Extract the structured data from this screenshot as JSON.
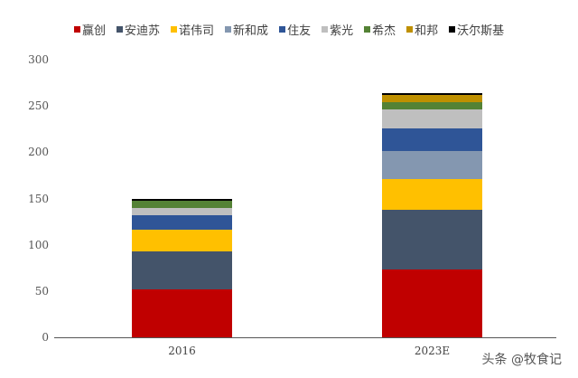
{
  "chart_data": {
    "type": "bar",
    "stacked": true,
    "title": "",
    "xlabel": "",
    "ylabel": "",
    "ylim": [
      0,
      300
    ],
    "yticks": [
      0,
      50,
      100,
      150,
      200,
      250,
      300
    ],
    "grid": false,
    "legend_position": "top",
    "categories": [
      "2016",
      "2023E"
    ],
    "series": [
      {
        "name": "赢创",
        "color": "#C00000",
        "values": [
          52,
          73
        ]
      },
      {
        "name": "安迪苏",
        "color": "#44546A",
        "values": [
          41,
          65
        ]
      },
      {
        "name": "诺伟司",
        "color": "#FFC000",
        "values": [
          23,
          33
        ]
      },
      {
        "name": "新和成",
        "color": "#8497B0",
        "values": [
          0,
          30
        ]
      },
      {
        "name": "住友",
        "color": "#2F5597",
        "values": [
          16,
          25
        ]
      },
      {
        "name": "紫光",
        "color": "#BFBFBF",
        "values": [
          8,
          20
        ]
      },
      {
        "name": "希杰",
        "color": "#548235",
        "values": [
          8,
          8
        ]
      },
      {
        "name": "和邦",
        "color": "#BF9000",
        "values": [
          0,
          8
        ]
      },
      {
        "name": "沃尔斯基",
        "color": "#000000",
        "values": [
          2,
          2
        ]
      }
    ]
  },
  "legend": [
    {
      "label": "赢创",
      "color": "#C00000"
    },
    {
      "label": "安迪苏",
      "color": "#44546A"
    },
    {
      "label": "诺伟司",
      "color": "#FFC000"
    },
    {
      "label": "新和成",
      "color": "#8497B0"
    },
    {
      "label": "住友",
      "color": "#2F5597"
    },
    {
      "label": "紫光",
      "color": "#BFBFBF"
    },
    {
      "label": "希杰",
      "color": "#548235"
    },
    {
      "label": "和邦",
      "color": "#BF9000"
    },
    {
      "label": "沃尔斯基",
      "color": "#000000"
    }
  ],
  "axis": {
    "y_labels": [
      "0",
      "50",
      "100",
      "150",
      "200",
      "250",
      "300"
    ],
    "x_labels": [
      "2016",
      "2023E"
    ]
  },
  "watermark": "头条 @牧食记"
}
